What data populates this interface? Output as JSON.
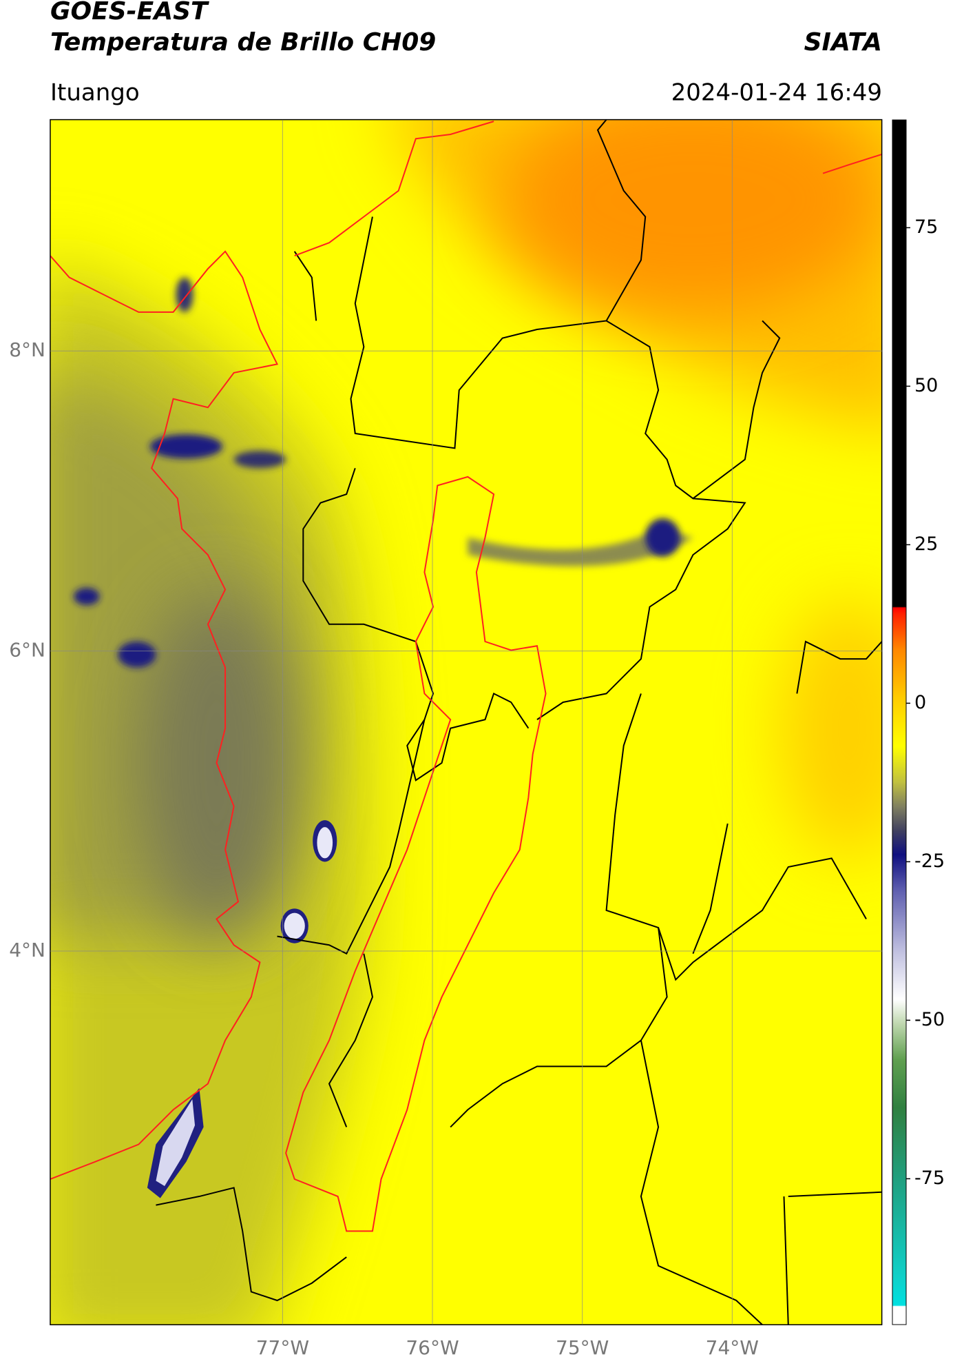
{
  "header": {
    "title": "GOES-EAST",
    "subtitle": "Temperatura de Brillo CH09",
    "source": "SIATA",
    "location": "Ituango",
    "datetime": "2024-01-24 16:49"
  },
  "map": {
    "xlim": [
      -78.55,
      -73.0
    ],
    "ylim": [
      1.51,
      9.54
    ],
    "xticks": [
      {
        "value": -77,
        "label": "77°W"
      },
      {
        "value": -76,
        "label": "76°W"
      },
      {
        "value": -75,
        "label": "75°W"
      },
      {
        "value": -74,
        "label": "74°W"
      }
    ],
    "yticks": [
      {
        "value": 8,
        "label": "8°N"
      },
      {
        "value": 6,
        "label": "6°N"
      },
      {
        "value": 4,
        "label": "4°N"
      }
    ],
    "grid": true
  },
  "colorbar": {
    "lim": [
      -98,
      92
    ],
    "ticks": [
      75,
      50,
      25,
      0,
      -25,
      -50,
      -75
    ]
  }
}
